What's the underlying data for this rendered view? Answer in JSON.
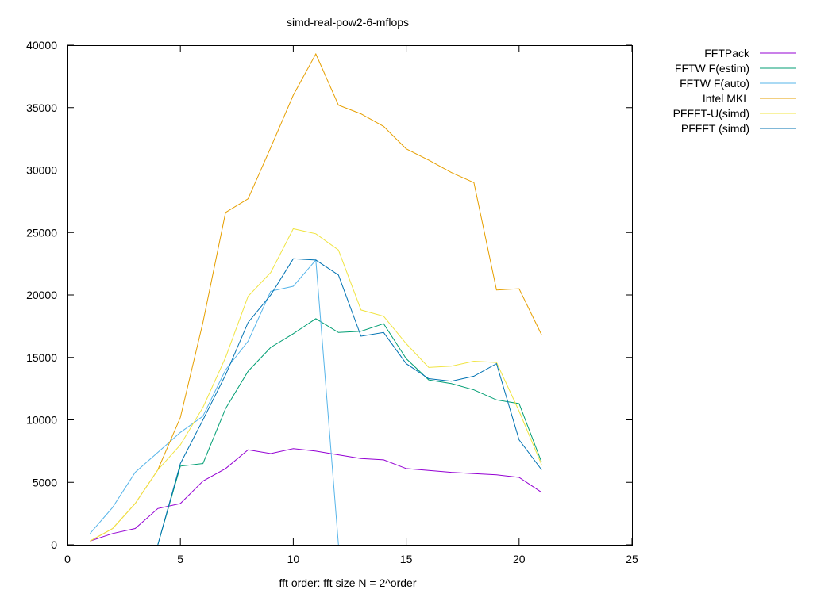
{
  "chart_data": {
    "type": "line",
    "title": "simd-real-pow2-6-mflops",
    "xlabel": "fft order: fft size N = 2^order",
    "ylabel": "",
    "xlim": [
      0,
      25
    ],
    "ylim": [
      0,
      40000
    ],
    "xticks": [
      0,
      5,
      10,
      15,
      20,
      25
    ],
    "yticks": [
      0,
      5000,
      10000,
      15000,
      20000,
      25000,
      30000,
      35000,
      40000
    ],
    "grid": false,
    "legend_position": "outside-top-right",
    "series": [
      {
        "name": "FFTPack",
        "color": "#9400d3",
        "x": [
          1,
          2,
          3,
          4,
          5,
          6,
          7,
          8,
          9,
          10,
          11,
          12,
          13,
          14,
          15,
          16,
          17,
          18,
          19,
          20,
          21
        ],
        "values": [
          300,
          900,
          1300,
          2900,
          3300,
          5100,
          6100,
          7600,
          7300,
          7700,
          7500,
          7200,
          6900,
          6800,
          6100,
          5950,
          5800,
          5700,
          5600,
          5400,
          4200
        ]
      },
      {
        "name": "FFTW F(estim)",
        "color": "#009e73",
        "x": [
          4,
          5,
          6,
          7,
          8,
          9,
          10,
          11,
          12,
          13,
          14,
          15,
          16,
          17,
          18,
          19,
          20,
          21
        ],
        "values": [
          0,
          6300,
          6500,
          10900,
          13900,
          15800,
          16900,
          18100,
          17000,
          17100,
          17700,
          14900,
          13200,
          12900,
          12400,
          11600,
          11300,
          6600
        ]
      },
      {
        "name": "FFTW F(auto)",
        "color": "#56b4e9",
        "x": [
          1,
          2,
          3,
          4,
          5,
          6,
          7,
          8,
          9,
          10,
          11,
          12
        ],
        "values": [
          900,
          3000,
          5800,
          7400,
          9000,
          10300,
          14000,
          16300,
          20300,
          20700,
          22800,
          0
        ]
      },
      {
        "name": "Intel MKL",
        "color": "#e69f00",
        "x": [
          1,
          2,
          3,
          4,
          5,
          6,
          7,
          8,
          9,
          10,
          11,
          12,
          13,
          14,
          15,
          16,
          17,
          18,
          19,
          20,
          21
        ],
        "values": [
          300,
          1300,
          3300,
          6000,
          10200,
          17800,
          26600,
          27700,
          31800,
          36000,
          39300,
          35200,
          34500,
          33500,
          31700,
          30800,
          29800,
          29000,
          20400,
          20500,
          16800
        ]
      },
      {
        "name": "PFFFT-U(simd)",
        "color": "#f0e442",
        "x": [
          1,
          2,
          3,
          4,
          5,
          6,
          7,
          8,
          9,
          10,
          11,
          12,
          13,
          14,
          15,
          16,
          17,
          18,
          19,
          20,
          21
        ],
        "values": [
          300,
          1300,
          3300,
          6000,
          8000,
          11000,
          15000,
          19900,
          21800,
          25300,
          24900,
          23600,
          18800,
          18300,
          16100,
          14200,
          14300,
          14700,
          14600,
          10700,
          6400
        ]
      },
      {
        "name": "PFFFT (simd)",
        "color": "#0072b2",
        "x": [
          4,
          5,
          6,
          7,
          8,
          9,
          10,
          11,
          12,
          13,
          14,
          15,
          16,
          17,
          18,
          19,
          20,
          21
        ],
        "values": [
          0,
          6500,
          10000,
          13600,
          17800,
          20000,
          22900,
          22800,
          21600,
          16700,
          17000,
          14500,
          13300,
          13100,
          13500,
          14500,
          8400,
          6000
        ]
      }
    ]
  }
}
